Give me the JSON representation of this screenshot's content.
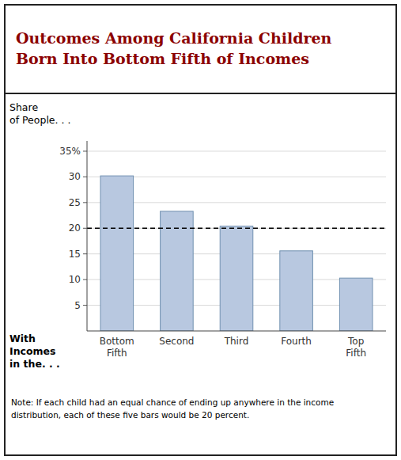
{
  "chart_data": {
    "type": "bar",
    "title": "Outcomes Among California Children\nBorn Into Bottom Fifth of Incomes",
    "ylabel": "Share\nof People. . .",
    "xlabel": "With\nIncomes\nin the. . .",
    "note": "Note: If each child had an equal chance of ending up anywhere in the income\ndistribution, each of these five bars would be 20 percent.",
    "categories": [
      "Bottom\nFifth",
      "Second",
      "Third",
      "Fourth",
      "Top\nFifth"
    ],
    "values": [
      30.2,
      23.3,
      20.4,
      15.6,
      10.3
    ],
    "color": "#b8c8e0",
    "reference_line": 20,
    "ylim": [
      0,
      37
    ],
    "yticks": [
      5,
      10,
      15,
      20,
      25,
      30,
      {
        "value": 35,
        "label": "35%"
      }
    ],
    "grid": true
  }
}
